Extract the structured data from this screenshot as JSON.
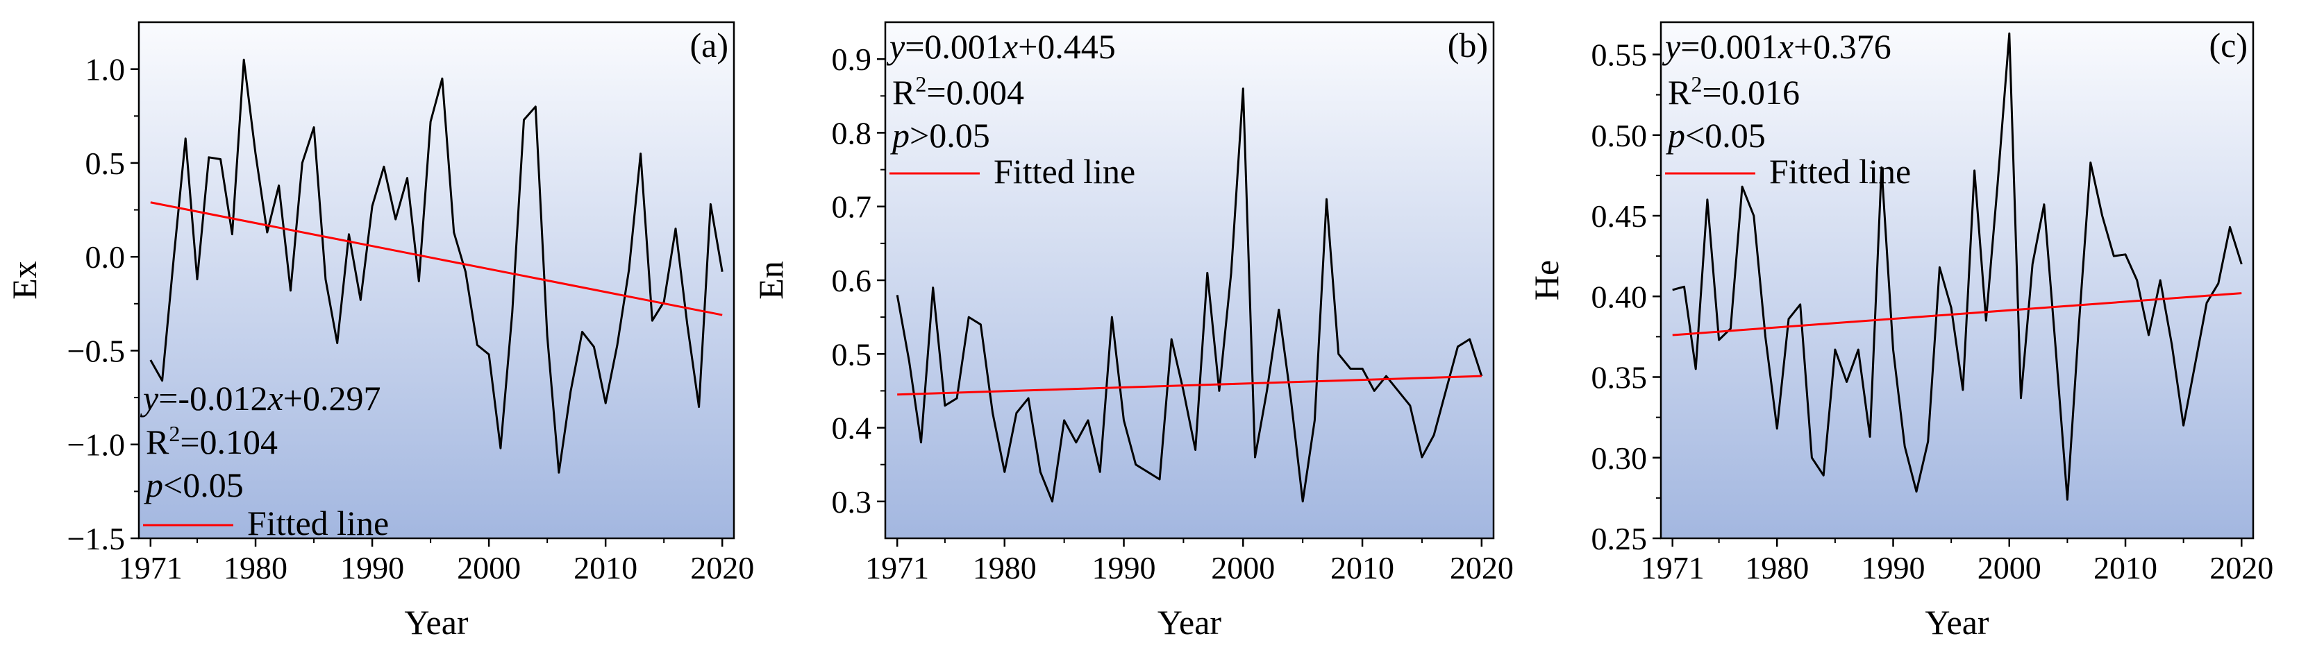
{
  "colors": {
    "bg_top": "#fafbfe",
    "bg_bottom": "#a3b7e0",
    "series_line": "#000000",
    "fit_line": "#ff0000",
    "axis": "#000000"
  },
  "chart_data": [
    {
      "type": "line",
      "panel": "(a)",
      "xlabel": "Year",
      "ylabel": "Ex",
      "xlim": [
        1970,
        2021
      ],
      "ylim": [
        -1.5,
        1.25
      ],
      "xticks": [
        "1971",
        "1980",
        "1990",
        "2000",
        "2010",
        "2020"
      ],
      "yticks": [
        "1.0",
        "0.5",
        "0.0",
        "−0.5",
        "−1.0",
        "−1.5"
      ],
      "ytick_values": [
        1.0,
        0.5,
        0.0,
        -0.5,
        -1.0,
        -1.5
      ],
      "x": [
        1971,
        1972,
        1973,
        1974,
        1975,
        1976,
        1977,
        1978,
        1979,
        1980,
        1981,
        1982,
        1983,
        1984,
        1985,
        1986,
        1987,
        1988,
        1989,
        1990,
        1991,
        1992,
        1993,
        1994,
        1995,
        1996,
        1997,
        1998,
        1999,
        2000,
        2001,
        2002,
        2003,
        2004,
        2005,
        2006,
        2007,
        2008,
        2009,
        2010,
        2011,
        2012,
        2013,
        2014,
        2015,
        2016,
        2017,
        2018,
        2019,
        2020
      ],
      "values": [
        -0.55,
        -0.66,
        0.0,
        0.63,
        -0.12,
        0.53,
        0.52,
        0.12,
        1.05,
        0.55,
        0.13,
        0.38,
        -0.18,
        0.5,
        0.69,
        -0.12,
        -0.46,
        0.12,
        -0.23,
        0.27,
        0.48,
        0.2,
        0.42,
        -0.13,
        0.72,
        0.95,
        0.13,
        -0.08,
        -0.47,
        -0.52,
        -1.02,
        -0.3,
        0.73,
        0.8,
        -0.42,
        -1.15,
        -0.72,
        -0.4,
        -0.48,
        -0.78,
        -0.47,
        -0.07,
        0.55,
        -0.34,
        -0.24,
        0.15,
        -0.36,
        -0.8,
        0.28,
        -0.08
      ],
      "fit": {
        "slope": -0.012,
        "intercept": 0.297,
        "y_start": 0.29,
        "y_end": -0.31
      },
      "stats": {
        "equation": "y=-0.012x+0.297",
        "r2": "R2=0.104",
        "p": "p<0.05",
        "position": "bottom-left"
      },
      "legend": {
        "label": "Fitted line",
        "position": "bottom-left"
      }
    },
    {
      "type": "line",
      "panel": "(b)",
      "xlabel": "Year",
      "ylabel": "En",
      "xlim": [
        1970,
        2021
      ],
      "ylim": [
        0.25,
        0.95
      ],
      "xticks": [
        "1971",
        "1980",
        "1990",
        "2000",
        "2010",
        "2020"
      ],
      "yticks": [
        "0.9",
        "0.8",
        "0.7",
        "0.6",
        "0.5",
        "0.4",
        "0.3"
      ],
      "ytick_values": [
        0.9,
        0.8,
        0.7,
        0.6,
        0.5,
        0.4,
        0.3
      ],
      "x": [
        1971,
        1972,
        1973,
        1974,
        1975,
        1976,
        1977,
        1978,
        1979,
        1980,
        1981,
        1982,
        1983,
        1984,
        1985,
        1986,
        1987,
        1988,
        1989,
        1990,
        1991,
        1992,
        1993,
        1994,
        1995,
        1996,
        1997,
        1998,
        1999,
        2000,
        2001,
        2002,
        2003,
        2004,
        2005,
        2006,
        2007,
        2008,
        2009,
        2010,
        2011,
        2012,
        2013,
        2014,
        2015,
        2016,
        2017,
        2018,
        2019,
        2020
      ],
      "values": [
        0.58,
        0.49,
        0.38,
        0.59,
        0.43,
        0.44,
        0.55,
        0.54,
        0.42,
        0.34,
        0.42,
        0.44,
        0.34,
        0.3,
        0.41,
        0.38,
        0.41,
        0.34,
        0.55,
        0.41,
        0.35,
        0.34,
        0.33,
        0.52,
        0.45,
        0.37,
        0.61,
        0.45,
        0.61,
        0.86,
        0.36,
        0.45,
        0.56,
        0.44,
        0.3,
        0.41,
        0.71,
        0.5,
        0.48,
        0.48,
        0.45,
        0.47,
        0.45,
        0.43,
        0.36,
        0.39,
        0.45,
        0.51,
        0.52,
        0.47
      ],
      "fit": {
        "slope": 0.001,
        "intercept": 0.445,
        "y_start": 0.445,
        "y_end": 0.47
      },
      "stats": {
        "equation": "y=0.001x+0.445",
        "r2": "R2=0.004",
        "p": "p>0.05",
        "position": "top-left"
      },
      "legend": {
        "label": "Fitted line",
        "position": "top-left"
      }
    },
    {
      "type": "line",
      "panel": "(c)",
      "xlabel": "Year",
      "ylabel": "He",
      "xlim": [
        1970,
        2021
      ],
      "ylim": [
        0.25,
        0.57
      ],
      "xticks": [
        "1971",
        "1980",
        "1990",
        "2000",
        "2010",
        "2020"
      ],
      "yticks": [
        "0.55",
        "0.50",
        "0.45",
        "0.40",
        "0.35",
        "0.30",
        "0.25"
      ],
      "ytick_values": [
        0.55,
        0.5,
        0.45,
        0.4,
        0.35,
        0.3,
        0.25
      ],
      "x": [
        1971,
        1972,
        1973,
        1974,
        1975,
        1976,
        1977,
        1978,
        1979,
        1980,
        1981,
        1982,
        1983,
        1984,
        1985,
        1986,
        1987,
        1988,
        1989,
        1990,
        1991,
        1992,
        1993,
        1994,
        1995,
        1996,
        1997,
        1998,
        1999,
        2000,
        2001,
        2002,
        2003,
        2004,
        2005,
        2006,
        2007,
        2008,
        2009,
        2010,
        2011,
        2012,
        2013,
        2014,
        2015,
        2016,
        2017,
        2018,
        2019,
        2020
      ],
      "values": [
        0.404,
        0.406,
        0.355,
        0.46,
        0.373,
        0.38,
        0.468,
        0.45,
        0.375,
        0.318,
        0.386,
        0.395,
        0.3,
        0.289,
        0.367,
        0.347,
        0.367,
        0.313,
        0.48,
        0.367,
        0.307,
        0.279,
        0.31,
        0.418,
        0.393,
        0.342,
        0.478,
        0.385,
        0.47,
        0.563,
        0.337,
        0.42,
        0.457,
        0.367,
        0.274,
        0.383,
        0.483,
        0.45,
        0.425,
        0.426,
        0.41,
        0.376,
        0.41,
        0.37,
        0.32,
        0.358,
        0.396,
        0.408,
        0.443,
        0.42
      ],
      "fit": {
        "slope": 0.001,
        "intercept": 0.376,
        "y_start": 0.376,
        "y_end": 0.402
      },
      "stats": {
        "equation": "y=0.001x+0.376",
        "r2": "R2=0.016",
        "p": "p<0.05",
        "position": "top-left"
      },
      "legend": {
        "label": "Fitted line",
        "position": "top-left"
      }
    }
  ]
}
